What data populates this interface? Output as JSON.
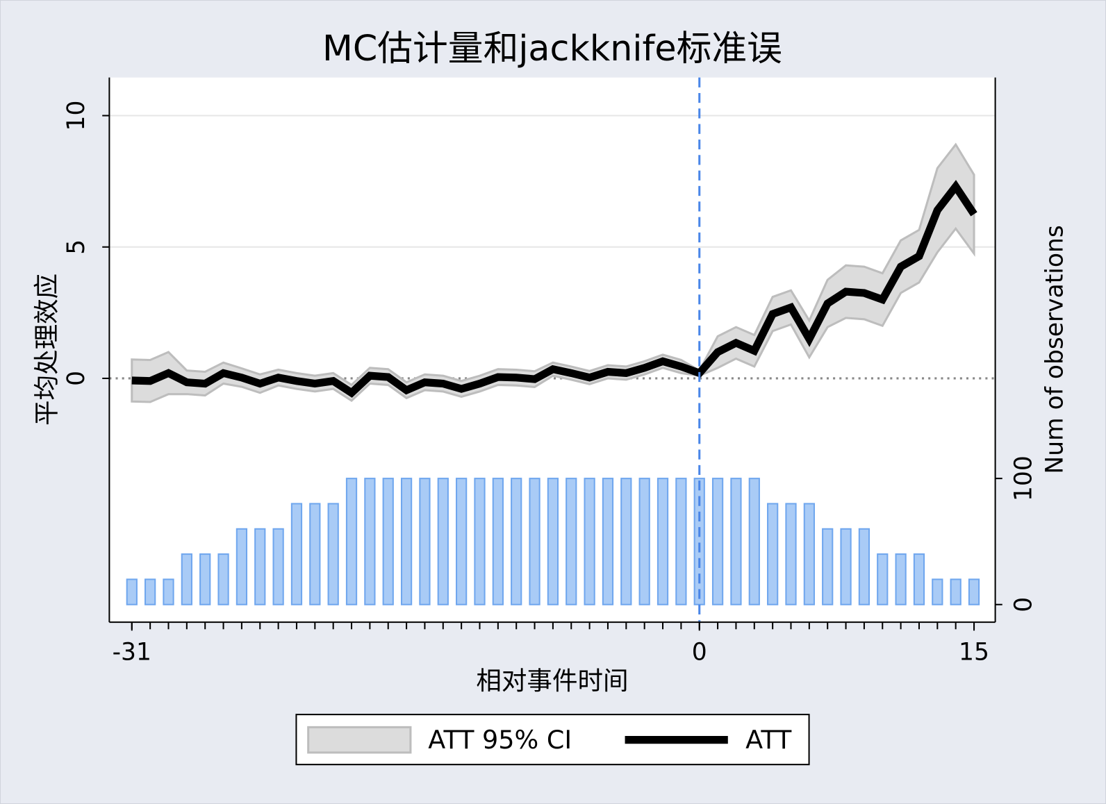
{
  "chart_data": {
    "type": "line",
    "title": "MC估计量和jackknife标准误",
    "xlabel": "相对事件时间",
    "ylabel": "平均处理效应",
    "y2label": "Num of observations",
    "x": [
      -31,
      -30,
      -29,
      -28,
      -27,
      -26,
      -25,
      -24,
      -23,
      -22,
      -21,
      -20,
      -19,
      -18,
      -17,
      -16,
      -15,
      -14,
      -13,
      -12,
      -11,
      -10,
      -9,
      -8,
      -7,
      -6,
      -5,
      -4,
      -3,
      -2,
      -1,
      0,
      1,
      2,
      3,
      4,
      5,
      6,
      7,
      8,
      9,
      10,
      11,
      12,
      13,
      14,
      15
    ],
    "xlim": [
      -32.23,
      16.16
    ],
    "xticks": [
      -31,
      0,
      15
    ],
    "ylim": [
      -9.28,
      11.45
    ],
    "yticks": [
      0,
      5,
      10
    ],
    "y2lim": [
      -14,
      418
    ],
    "y2ticks": [
      0,
      100
    ],
    "grid": true,
    "xline": 0,
    "yline": 0,
    "series": [
      {
        "name": "ATT 95% CI",
        "type": "area",
        "color": "#dcdcdc",
        "lower": [
          -0.88,
          -0.9,
          -0.6,
          -0.6,
          -0.65,
          -0.2,
          -0.32,
          -0.55,
          -0.27,
          -0.4,
          -0.5,
          -0.4,
          -0.85,
          -0.2,
          -0.25,
          -0.75,
          -0.45,
          -0.5,
          -0.7,
          -0.5,
          -0.25,
          -0.27,
          -0.33,
          0.1,
          -0.05,
          -0.22,
          0,
          -0.05,
          0.15,
          0.4,
          0.2,
          0.1,
          0.4,
          0.75,
          0.45,
          1.8,
          2.05,
          0.8,
          1.95,
          2.3,
          2.25,
          2.0,
          3.25,
          3.65,
          4.8,
          5.7,
          4.75
        ],
        "upper": [
          0.72,
          0.7,
          1.0,
          0.3,
          0.25,
          0.6,
          0.38,
          0.15,
          0.33,
          0.2,
          0.1,
          0.2,
          -0.25,
          0.4,
          0.35,
          -0.15,
          0.15,
          0.1,
          -0.1,
          0.1,
          0.35,
          0.33,
          0.27,
          0.6,
          0.45,
          0.28,
          0.5,
          0.45,
          0.65,
          0.9,
          0.7,
          0.3,
          1.6,
          1.95,
          1.65,
          3.1,
          3.35,
          2.2,
          3.75,
          4.3,
          4.25,
          4.0,
          5.25,
          5.65,
          8.0,
          8.9,
          7.75
        ]
      },
      {
        "name": "ATT",
        "type": "line",
        "color": "#000000",
        "values": [
          -0.08,
          -0.1,
          0.2,
          -0.15,
          -0.2,
          0.2,
          0.03,
          -0.2,
          0.03,
          -0.1,
          -0.2,
          -0.1,
          -0.55,
          0.1,
          0.05,
          -0.45,
          -0.15,
          -0.2,
          -0.4,
          -0.2,
          0.05,
          0.03,
          -0.03,
          0.35,
          0.2,
          0.03,
          0.25,
          0.2,
          0.4,
          0.65,
          0.45,
          0.2,
          1.0,
          1.35,
          1.05,
          2.45,
          2.7,
          1.5,
          2.85,
          3.3,
          3.25,
          3.0,
          4.25,
          4.65,
          6.4,
          7.3,
          6.25
        ]
      }
    ],
    "bars": {
      "axis": "y2",
      "color": "#a9cbf6",
      "edgecolor": "#6fa6ee",
      "values": [
        20,
        20,
        20,
        40,
        40,
        40,
        60,
        60,
        60,
        80,
        80,
        80,
        100,
        100,
        100,
        100,
        100,
        100,
        100,
        100,
        100,
        100,
        100,
        100,
        100,
        100,
        100,
        100,
        100,
        100,
        100,
        100,
        100,
        100,
        100,
        80,
        80,
        80,
        60,
        60,
        60,
        40,
        40,
        40,
        20,
        20,
        20
      ]
    }
  }
}
